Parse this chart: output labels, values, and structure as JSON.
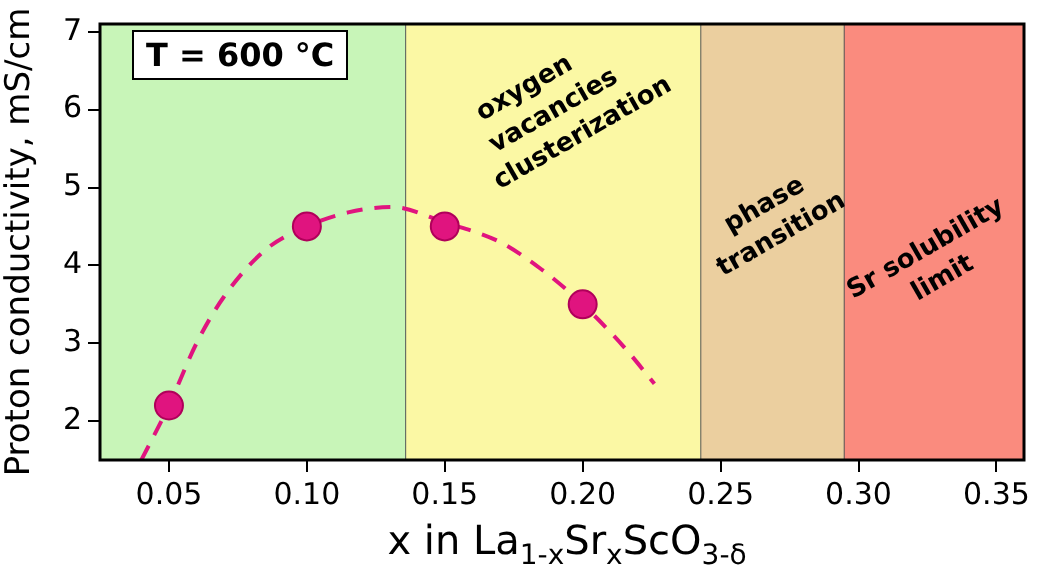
{
  "chart_data": {
    "type": "scatter",
    "xlabel": "x in La$_{1-x}$Sr$_{x}$ScO$_{3-δ}$",
    "ylabel": "Proton conductivity, mS/cm",
    "x": [
      0.05,
      0.1,
      0.15,
      0.2
    ],
    "series": [
      {
        "color": "#e0147f",
        "values": [
          2.2,
          4.5,
          4.5,
          3.5
        ],
        "marker": "circle"
      },
      {
        "type": "line",
        "color": "#e0147f",
        "line_style": "dashed",
        "marker": "none",
        "x": [
          0.04,
          0.05,
          0.06,
          0.07,
          0.085,
          0.1,
          0.115,
          0.131,
          0.15,
          0.17,
          0.185,
          0.2,
          0.215,
          0.226
        ],
        "values": [
          1.5,
          2.2,
          3.0,
          3.6,
          4.2,
          4.5,
          4.68,
          4.75,
          4.55,
          4.3,
          3.95,
          3.5,
          2.95,
          2.48
        ]
      }
    ],
    "xlim": [
      0.025,
      0.36
    ],
    "xticks": [
      {
        "value": 0.05,
        "label": "0.05"
      },
      {
        "value": 0.1,
        "label": "0.10"
      },
      {
        "value": 0.15,
        "label": "0.15"
      },
      {
        "value": 0.2,
        "label": "0.20"
      },
      {
        "value": 0.25,
        "label": "0.25"
      },
      {
        "value": 0.3,
        "label": "0.30"
      },
      {
        "value": 0.35,
        "label": "0.35"
      }
    ],
    "ylim": [
      1.5,
      7.1
    ],
    "yticks": [
      2,
      3,
      4,
      5,
      6,
      7
    ],
    "bands": [
      {
        "axis": "x",
        "from": 0.025,
        "to": 0.136,
        "color": "#c8f5b8"
      },
      {
        "axis": "x",
        "from": 0.136,
        "to": 0.243,
        "color": "#fbf8a4",
        "label": "oxygen\nvacancies\nclusterization"
      },
      {
        "axis": "x",
        "from": 0.243,
        "to": 0.295,
        "color": "#ebcf9f",
        "label": "phase\ntransition"
      },
      {
        "axis": "x",
        "from": 0.295,
        "to": 0.36,
        "color": "#fa8b7e",
        "label": "Sr solubility\nlimit"
      }
    ],
    "annotations": [
      "T = 600 °C"
    ],
    "grid": false,
    "legend": false
  }
}
